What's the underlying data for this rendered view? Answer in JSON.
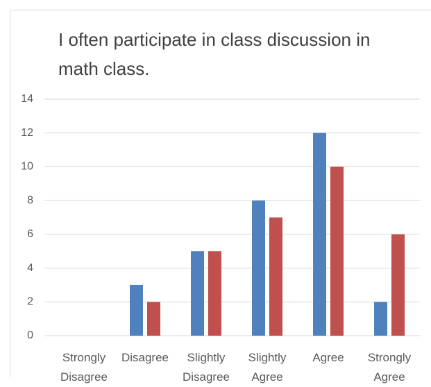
{
  "chart_data": {
    "type": "bar",
    "title": "I often participate in class discussion in math class.",
    "categories": [
      "Strongly Disagree",
      "Disagree",
      "Slightly Disagree",
      "Slightly Agree",
      "Agree",
      "Strongly Agree"
    ],
    "series": [
      {
        "color": "#4f81bd",
        "values": [
          0,
          3,
          5,
          8,
          12,
          2
        ]
      },
      {
        "color": "#c0504d",
        "values": [
          0,
          2,
          5,
          7,
          10,
          6
        ]
      }
    ],
    "ylim": [
      0,
      14
    ],
    "yticks": [
      0,
      2,
      4,
      6,
      8,
      10,
      12,
      14
    ],
    "grid": true
  }
}
